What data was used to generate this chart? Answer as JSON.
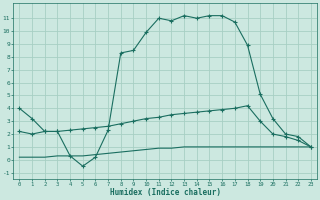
{
  "xlabel": "Humidex (Indice chaleur)",
  "xlim": [
    -0.5,
    23.5
  ],
  "ylim": [
    -1.5,
    12.2
  ],
  "yticks": [
    -1,
    0,
    1,
    2,
    3,
    4,
    5,
    6,
    7,
    8,
    9,
    10,
    11
  ],
  "xticks": [
    0,
    1,
    2,
    3,
    4,
    5,
    6,
    7,
    8,
    9,
    10,
    11,
    12,
    13,
    14,
    15,
    16,
    17,
    18,
    19,
    20,
    21,
    22,
    23
  ],
  "bg_color": "#cce8e0",
  "grid_color": "#a8cfc4",
  "line_color": "#1a6e60",
  "line1_x": [
    0,
    1,
    2,
    3,
    4,
    5,
    6,
    7,
    8,
    9,
    10,
    11,
    12,
    13,
    14,
    15,
    16,
    17,
    18,
    19,
    20,
    21,
    22,
    23
  ],
  "line1_y": [
    4.0,
    3.2,
    2.2,
    2.2,
    0.3,
    -0.5,
    0.2,
    2.3,
    8.3,
    8.5,
    9.9,
    11.0,
    10.8,
    11.2,
    11.0,
    11.2,
    11.2,
    10.7,
    8.9,
    5.1,
    3.2,
    2.0,
    1.8,
    1.0
  ],
  "line2_x": [
    0,
    1,
    2,
    3,
    4,
    5,
    6,
    7,
    8,
    9,
    10,
    11,
    12,
    13,
    14,
    15,
    16,
    17,
    18,
    19,
    20,
    21,
    22,
    23
  ],
  "line2_y": [
    2.2,
    2.0,
    2.2,
    2.2,
    2.3,
    2.4,
    2.5,
    2.6,
    2.8,
    3.0,
    3.2,
    3.3,
    3.5,
    3.6,
    3.7,
    3.8,
    3.9,
    4.0,
    4.2,
    3.0,
    2.0,
    1.8,
    1.5,
    1.0
  ],
  "line3_x": [
    0,
    1,
    2,
    3,
    4,
    5,
    6,
    7,
    8,
    9,
    10,
    11,
    12,
    13,
    14,
    15,
    16,
    17,
    18,
    19,
    20,
    21,
    22,
    23
  ],
  "line3_y": [
    0.2,
    0.2,
    0.2,
    0.3,
    0.3,
    0.3,
    0.4,
    0.5,
    0.6,
    0.7,
    0.8,
    0.9,
    0.9,
    1.0,
    1.0,
    1.0,
    1.0,
    1.0,
    1.0,
    1.0,
    1.0,
    1.0,
    1.0,
    1.0
  ]
}
